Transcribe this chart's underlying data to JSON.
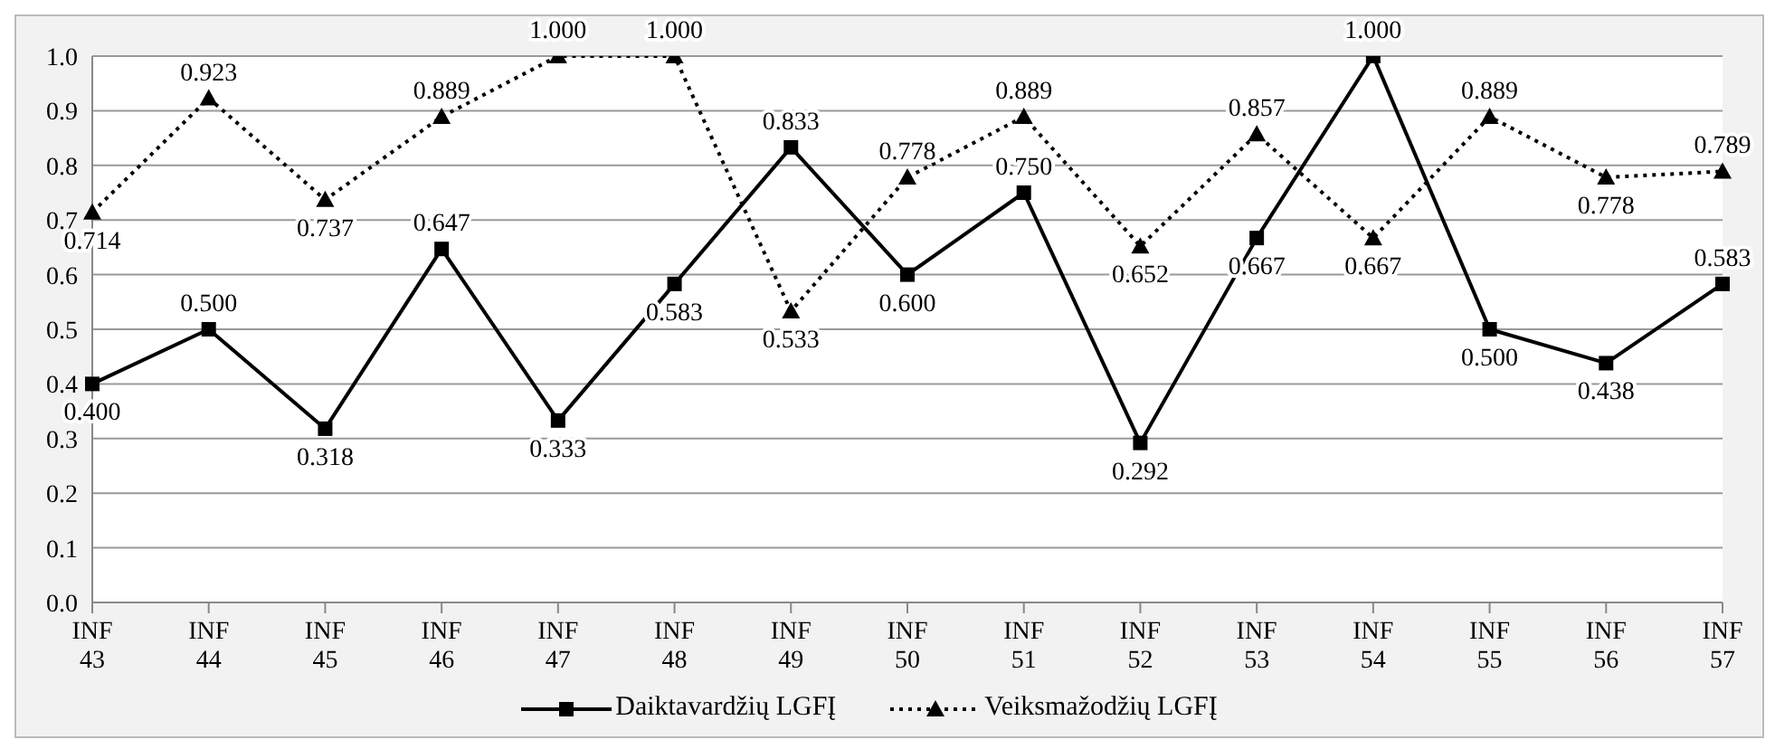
{
  "chart_data": {
    "type": "line",
    "categories": [
      "INF 43",
      "INF 44",
      "INF 45",
      "INF 46",
      "INF 47",
      "INF 48",
      "INF 49",
      "INF 50",
      "INF 51",
      "INF 52",
      "INF 53",
      "INF 54",
      "INF 55",
      "INF 56",
      "INF 57"
    ],
    "series": [
      {
        "name": "Daiktavardžių LGFĮ",
        "color": "#000000",
        "marker": "square",
        "line_style": "solid",
        "values": [
          0.4,
          0.5,
          0.318,
          0.647,
          0.333,
          0.583,
          0.833,
          0.6,
          0.75,
          0.292,
          0.667,
          1.0,
          0.5,
          0.438,
          0.583
        ],
        "value_labels": [
          "0.400",
          "0.500",
          "0.318",
          "0.647",
          "0.333",
          "0.583",
          "0.833",
          "0.600",
          "0.750",
          "0.292",
          "0.667",
          "1.000",
          "0.500",
          "0.438",
          "0.583"
        ]
      },
      {
        "name": "Veiksmažodžių LGFĮ",
        "color": "#000000",
        "marker": "triangle",
        "line_style": "dotted",
        "values": [
          0.714,
          0.923,
          0.737,
          0.889,
          1.0,
          1.0,
          0.533,
          0.778,
          0.889,
          0.652,
          0.857,
          0.667,
          0.889,
          0.778,
          0.789
        ],
        "value_labels": [
          "0.714",
          "0.923",
          "0.737",
          "0.889",
          "1.000",
          "1.000",
          "0.533",
          "0.778",
          "0.889",
          "0.652",
          "0.857",
          "0.667",
          "0.889",
          "0.778",
          "0.789"
        ]
      }
    ],
    "ylim": [
      0,
      1
    ],
    "yticks": [
      {
        "value": 0,
        "label": "0.0"
      },
      {
        "value": 0.1,
        "label": "0.1"
      },
      {
        "value": 0.2,
        "label": "0.2"
      },
      {
        "value": 0.3,
        "label": "0.3"
      },
      {
        "value": 0.4,
        "label": "0.4"
      },
      {
        "value": 0.5,
        "label": "0.5"
      },
      {
        "value": 0.6,
        "label": "0.6"
      },
      {
        "value": 0.7,
        "label": "0.7"
      },
      {
        "value": 0.8,
        "label": "0.8"
      },
      {
        "value": 0.9,
        "label": "0.9"
      },
      {
        "value": 1,
        "label": "1.0"
      }
    ],
    "grid": "y",
    "legend": "bottom"
  }
}
